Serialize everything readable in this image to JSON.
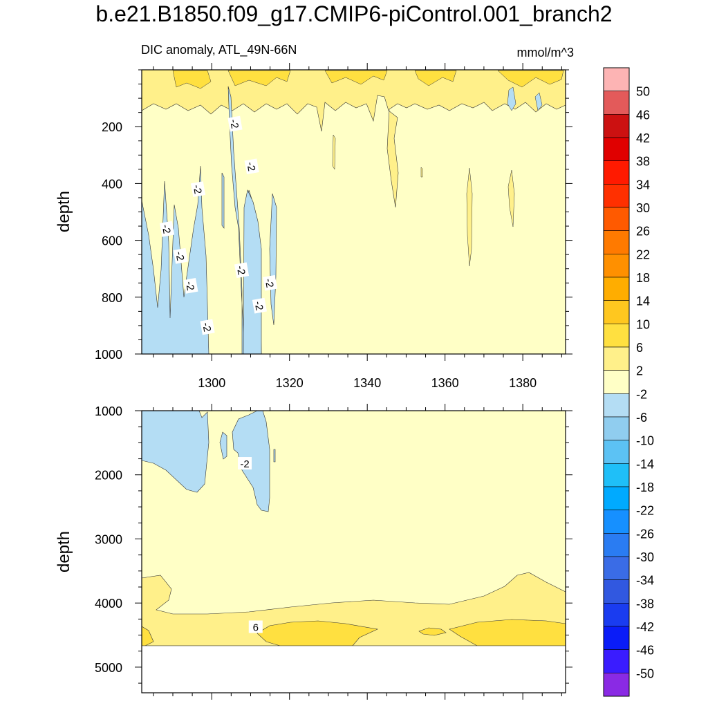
{
  "title": "b.e21.B1850.f09_g17.CMIP6-piControl.001_branch2",
  "subtitle": "DIC anomaly, ATL_49N-66N",
  "units": "mmol/m^3",
  "chart_data": [
    {
      "type": "heatmap",
      "name": "upper-panel",
      "ylabel": "depth",
      "xlabel": "",
      "xlim": [
        1282,
        1391
      ],
      "ylim": [
        0,
        1000
      ],
      "y_inverted": true,
      "x_ticks": [
        1300,
        1320,
        1340,
        1360,
        1380
      ],
      "y_ticks": [
        200,
        400,
        600,
        800,
        1000
      ],
      "contour_labels": [
        {
          "text": "-2",
          "x": 1306.0,
          "y": 190
        },
        {
          "text": "-2",
          "x": 1310.3,
          "y": 340
        },
        {
          "text": "-2",
          "x": 1296.5,
          "y": 420
        },
        {
          "text": "-2",
          "x": 1288.5,
          "y": 560
        },
        {
          "text": "-2",
          "x": 1292.0,
          "y": 655
        },
        {
          "text": "-2",
          "x": 1294.6,
          "y": 760
        },
        {
          "text": "-2",
          "x": 1307.7,
          "y": 705
        },
        {
          "text": "-2",
          "x": 1315.0,
          "y": 750
        },
        {
          "text": "-2",
          "x": 1312.3,
          "y": 830
        },
        {
          "text": "-2",
          "x": 1298.9,
          "y": 905
        }
      ],
      "dominant_level": "-2 to 2",
      "near_surface_level": "2 to 10"
    },
    {
      "type": "heatmap",
      "name": "lower-panel",
      "ylabel": "depth",
      "xlabel": "",
      "xlim": [
        1282,
        1391
      ],
      "ylim": [
        1000,
        5400
      ],
      "y_inverted": true,
      "y_ticks": [
        1000,
        2000,
        3000,
        4000,
        5000
      ],
      "data_bottom_depth": 4620,
      "contour_labels": [
        {
          "text": "-2",
          "x": 1308.5,
          "y": 1820
        },
        {
          "text": "6",
          "x": 1311.3,
          "y": 4370
        }
      ],
      "dominant_level": "-2 to 2",
      "bottom_level": "2 to 10"
    }
  ],
  "colorbar": {
    "labels": [
      "50",
      "46",
      "42",
      "38",
      "34",
      "30",
      "26",
      "22",
      "18",
      "14",
      "10",
      "6",
      "2",
      "-2",
      "-6",
      "-10",
      "-14",
      "-18",
      "-22",
      "-26",
      "-30",
      "-34",
      "-38",
      "-42",
      "-46",
      "-50"
    ],
    "colors": [
      "#fdb4b4",
      "#e35a5a",
      "#cc1111",
      "#e00000",
      "#ff1a00",
      "#ff3000",
      "#ff5a00",
      "#ff7a00",
      "#ff9000",
      "#ffad00",
      "#ffc71f",
      "#ffe040",
      "#fff08a",
      "#ffffc6",
      "#b4ddf4",
      "#90cdef",
      "#5cc2f4",
      "#1fbff8",
      "#00aaff",
      "#1690ff",
      "#2a7cf2",
      "#3a6ce6",
      "#3158e0",
      "#1a3cf0",
      "#0a1cf8",
      "#3a1cff",
      "#8a2ae4"
    ]
  },
  "colors": {
    "near_zero": "#ffffc6",
    "warm2": "#fff08a",
    "warm6": "#ffe040",
    "warm10": "#ffc71f",
    "cool2": "#b4ddf4",
    "cool6": "#90cdef"
  }
}
